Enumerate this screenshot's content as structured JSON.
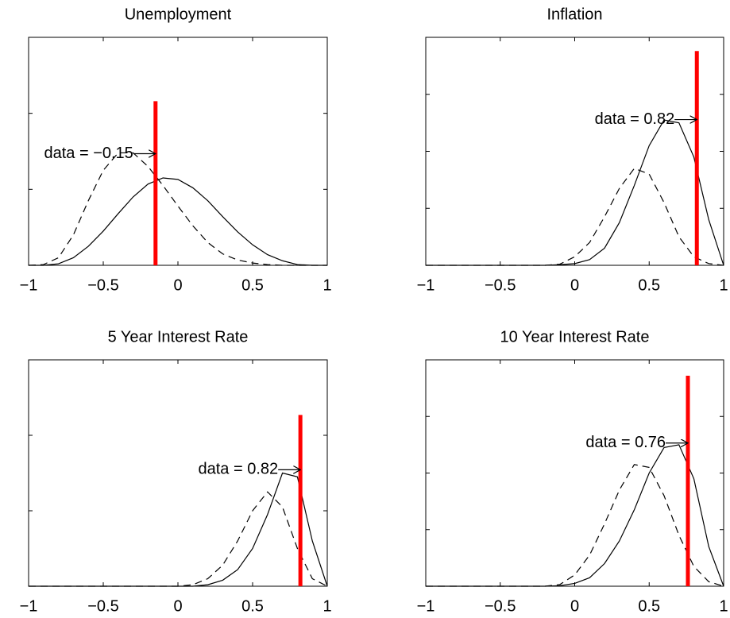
{
  "chart_data": [
    {
      "type": "density",
      "title": "Unemployment",
      "x": [
        -1,
        -0.9,
        -0.8,
        -0.7,
        -0.6,
        -0.5,
        -0.4,
        -0.3,
        -0.2,
        -0.1,
        0,
        0.1,
        0.2,
        0.3,
        0.4,
        0.5,
        0.6,
        0.7,
        0.8,
        0.9,
        1
      ],
      "series": [
        {
          "color": "#000000",
          "dash": false,
          "values": [
            0,
            0,
            0.02,
            0.1,
            0.25,
            0.45,
            0.68,
            0.9,
            1.07,
            1.15,
            1.13,
            1.02,
            0.85,
            0.64,
            0.44,
            0.27,
            0.14,
            0.06,
            0.01,
            0,
            0
          ]
        },
        {
          "color": "#000000",
          "dash": true,
          "values": [
            0,
            0.01,
            0.1,
            0.4,
            0.85,
            1.25,
            1.48,
            1.48,
            1.3,
            1.05,
            0.78,
            0.52,
            0.3,
            0.15,
            0.07,
            0.03,
            0.01,
            0,
            0,
            0,
            0
          ]
        }
      ],
      "vline": {
        "x": -0.15,
        "top": 2.16,
        "color": "#ff0000"
      },
      "annotation": "data = −0.15",
      "xlim": [
        -1,
        1
      ],
      "xticks": [
        {
          "value": -1,
          "label": "−1"
        },
        {
          "value": -0.5,
          "label": "−0.5"
        },
        0,
        0.5,
        1
      ],
      "ylim": [
        0,
        3
      ],
      "yticks": [
        0,
        1,
        2,
        3
      ]
    },
    {
      "type": "density",
      "title": "Inflation",
      "x": [
        -1,
        -0.9,
        -0.8,
        -0.7,
        -0.6,
        -0.5,
        -0.4,
        -0.3,
        -0.2,
        -0.1,
        0,
        0.1,
        0.2,
        0.3,
        0.4,
        0.5,
        0.6,
        0.7,
        0.8,
        0.9,
        1
      ],
      "series": [
        {
          "color": "#000000",
          "dash": false,
          "values": [
            0,
            0,
            0,
            0,
            0,
            0,
            0,
            0,
            0,
            0.01,
            0.03,
            0.1,
            0.3,
            0.75,
            1.4,
            2.1,
            2.55,
            2.5,
            1.9,
            0.8,
            0
          ]
        },
        {
          "color": "#000000",
          "dash": true,
          "values": [
            0,
            0,
            0,
            0,
            0,
            0,
            0,
            0,
            0,
            0.02,
            0.15,
            0.4,
            0.85,
            1.35,
            1.7,
            1.6,
            1.1,
            0.5,
            0.15,
            0.03,
            0
          ]
        }
      ],
      "vline": {
        "x": 0.82,
        "top": 3.76,
        "color": "#ff0000"
      },
      "annotation": "data = 0.82",
      "xlim": [
        -1,
        1
      ],
      "xticks": [
        {
          "value": -1,
          "label": "−1"
        },
        {
          "value": -0.5,
          "label": "−0.5"
        },
        0,
        0.5,
        1
      ],
      "ylim": [
        0,
        4
      ],
      "yticks": [
        0,
        1,
        2,
        3,
        4
      ]
    },
    {
      "type": "density",
      "title": "5 Year Interest Rate",
      "x": [
        -1,
        -0.9,
        -0.8,
        -0.7,
        -0.6,
        -0.5,
        -0.4,
        -0.3,
        -0.2,
        -0.1,
        0,
        0.1,
        0.2,
        0.3,
        0.4,
        0.5,
        0.6,
        0.7,
        0.8,
        0.9,
        1
      ],
      "series": [
        {
          "color": "#000000",
          "dash": false,
          "values": [
            0,
            0,
            0,
            0,
            0,
            0,
            0,
            0,
            0,
            0,
            0,
            0,
            0.02,
            0.08,
            0.22,
            0.5,
            0.95,
            1.5,
            1.45,
            0.6,
            0
          ]
        },
        {
          "color": "#000000",
          "dash": true,
          "values": [
            0,
            0,
            0,
            0,
            0,
            0,
            0,
            0,
            0,
            0,
            0,
            0.02,
            0.1,
            0.28,
            0.6,
            1.0,
            1.25,
            1.05,
            0.5,
            0.1,
            0
          ]
        }
      ],
      "vline": {
        "x": 0.82,
        "top": 2.27,
        "color": "#ff0000"
      },
      "annotation": "data = 0.82",
      "xlim": [
        -1,
        1
      ],
      "xticks": [
        {
          "value": -1,
          "label": "−1"
        },
        {
          "value": -0.5,
          "label": "−0.5"
        },
        0,
        0.5,
        1
      ],
      "ylim": [
        0,
        3
      ],
      "yticks": [
        0,
        1,
        2,
        3
      ]
    },
    {
      "type": "density",
      "title": "10 Year Interest Rate",
      "x": [
        -1,
        -0.9,
        -0.8,
        -0.7,
        -0.6,
        -0.5,
        -0.4,
        -0.3,
        -0.2,
        -0.1,
        0,
        0.1,
        0.2,
        0.3,
        0.4,
        0.5,
        0.6,
        0.7,
        0.8,
        0.9,
        1
      ],
      "series": [
        {
          "color": "#000000",
          "dash": false,
          "values": [
            0,
            0,
            0,
            0,
            0,
            0,
            0,
            0,
            0,
            0.01,
            0.05,
            0.15,
            0.4,
            0.8,
            1.35,
            2.0,
            2.45,
            2.5,
            1.9,
            0.7,
            0
          ]
        },
        {
          "color": "#000000",
          "dash": true,
          "values": [
            0,
            0,
            0,
            0,
            0,
            0,
            0,
            0,
            0,
            0.03,
            0.2,
            0.55,
            1.1,
            1.7,
            2.15,
            2.1,
            1.6,
            0.9,
            0.35,
            0.08,
            0
          ]
        }
      ],
      "vline": {
        "x": 0.76,
        "top": 3.72,
        "color": "#ff0000"
      },
      "annotation": "data = 0.76",
      "xlim": [
        -1,
        1
      ],
      "xticks": [
        {
          "value": -1,
          "label": "−1"
        },
        {
          "value": -0.5,
          "label": "−0.5"
        },
        0,
        0.5,
        1
      ],
      "ylim": [
        0,
        4
      ],
      "yticks": [
        0,
        1,
        2,
        3,
        4
      ]
    }
  ]
}
